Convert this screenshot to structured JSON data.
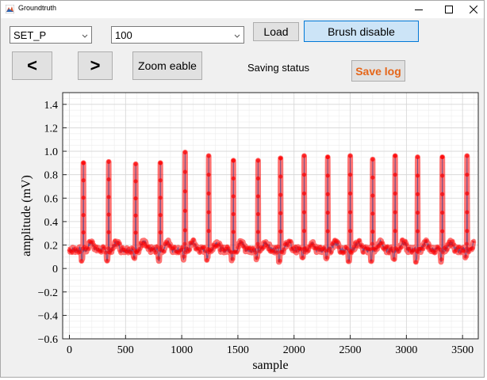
{
  "window": {
    "title": "Groundtruth"
  },
  "controls": {
    "set_select": "SET_P",
    "value_select": "100",
    "load_label": "Load",
    "brush_label": "Brush disable",
    "prev_label": "<",
    "next_label": ">",
    "zoom_label": "Zoom eable",
    "saving_status": "Saving status",
    "save_log_label": "Save log"
  },
  "colors": {
    "signal": "#ff0000",
    "line": "#1f3a93",
    "save_log_text": "#e5661a",
    "brush_bg": "#cce4f7",
    "brush_border": "#0078d7"
  },
  "chart_data": {
    "type": "line",
    "xlabel": "sample",
    "ylabel": "amplitude (mV)",
    "xlim": [
      -60,
      3640
    ],
    "ylim": [
      -0.6,
      1.5
    ],
    "xticks": [
      0,
      500,
      1000,
      1500,
      2000,
      2500,
      3000,
      3500
    ],
    "xtick_labels": [
      "0",
      "500",
      "1000",
      "1500",
      "2000",
      "2500",
      "3000",
      "3500"
    ],
    "yticks": [
      -0.6,
      -0.4,
      -0.2,
      0,
      0.2,
      0.4,
      0.6,
      0.8,
      1.0,
      1.2,
      1.4
    ],
    "ytick_labels": [
      "−0.6",
      "−0.4",
      "−0.2",
      "0",
      "0.2",
      "0.4",
      "0.6",
      "0.8",
      "1.0",
      "1.2",
      "1.4"
    ],
    "grid": true,
    "minor_grid": true,
    "baseline": 0.16,
    "x_start": 0,
    "x_end": 3600,
    "r_peaks": [
      {
        "x": 125,
        "y": 0.9
      },
      {
        "x": 350,
        "y": 0.91
      },
      {
        "x": 590,
        "y": 0.89
      },
      {
        "x": 810,
        "y": 0.9
      },
      {
        "x": 1030,
        "y": 0.99
      },
      {
        "x": 1240,
        "y": 0.96
      },
      {
        "x": 1460,
        "y": 0.92
      },
      {
        "x": 1680,
        "y": 0.92
      },
      {
        "x": 1880,
        "y": 0.94
      },
      {
        "x": 2090,
        "y": 0.96
      },
      {
        "x": 2300,
        "y": 0.95
      },
      {
        "x": 2500,
        "y": 0.96
      },
      {
        "x": 2700,
        "y": 0.93
      },
      {
        "x": 2900,
        "y": 0.96
      },
      {
        "x": 3100,
        "y": 0.95
      },
      {
        "x": 3320,
        "y": 0.95
      },
      {
        "x": 3540,
        "y": 0.96
      }
    ]
  }
}
